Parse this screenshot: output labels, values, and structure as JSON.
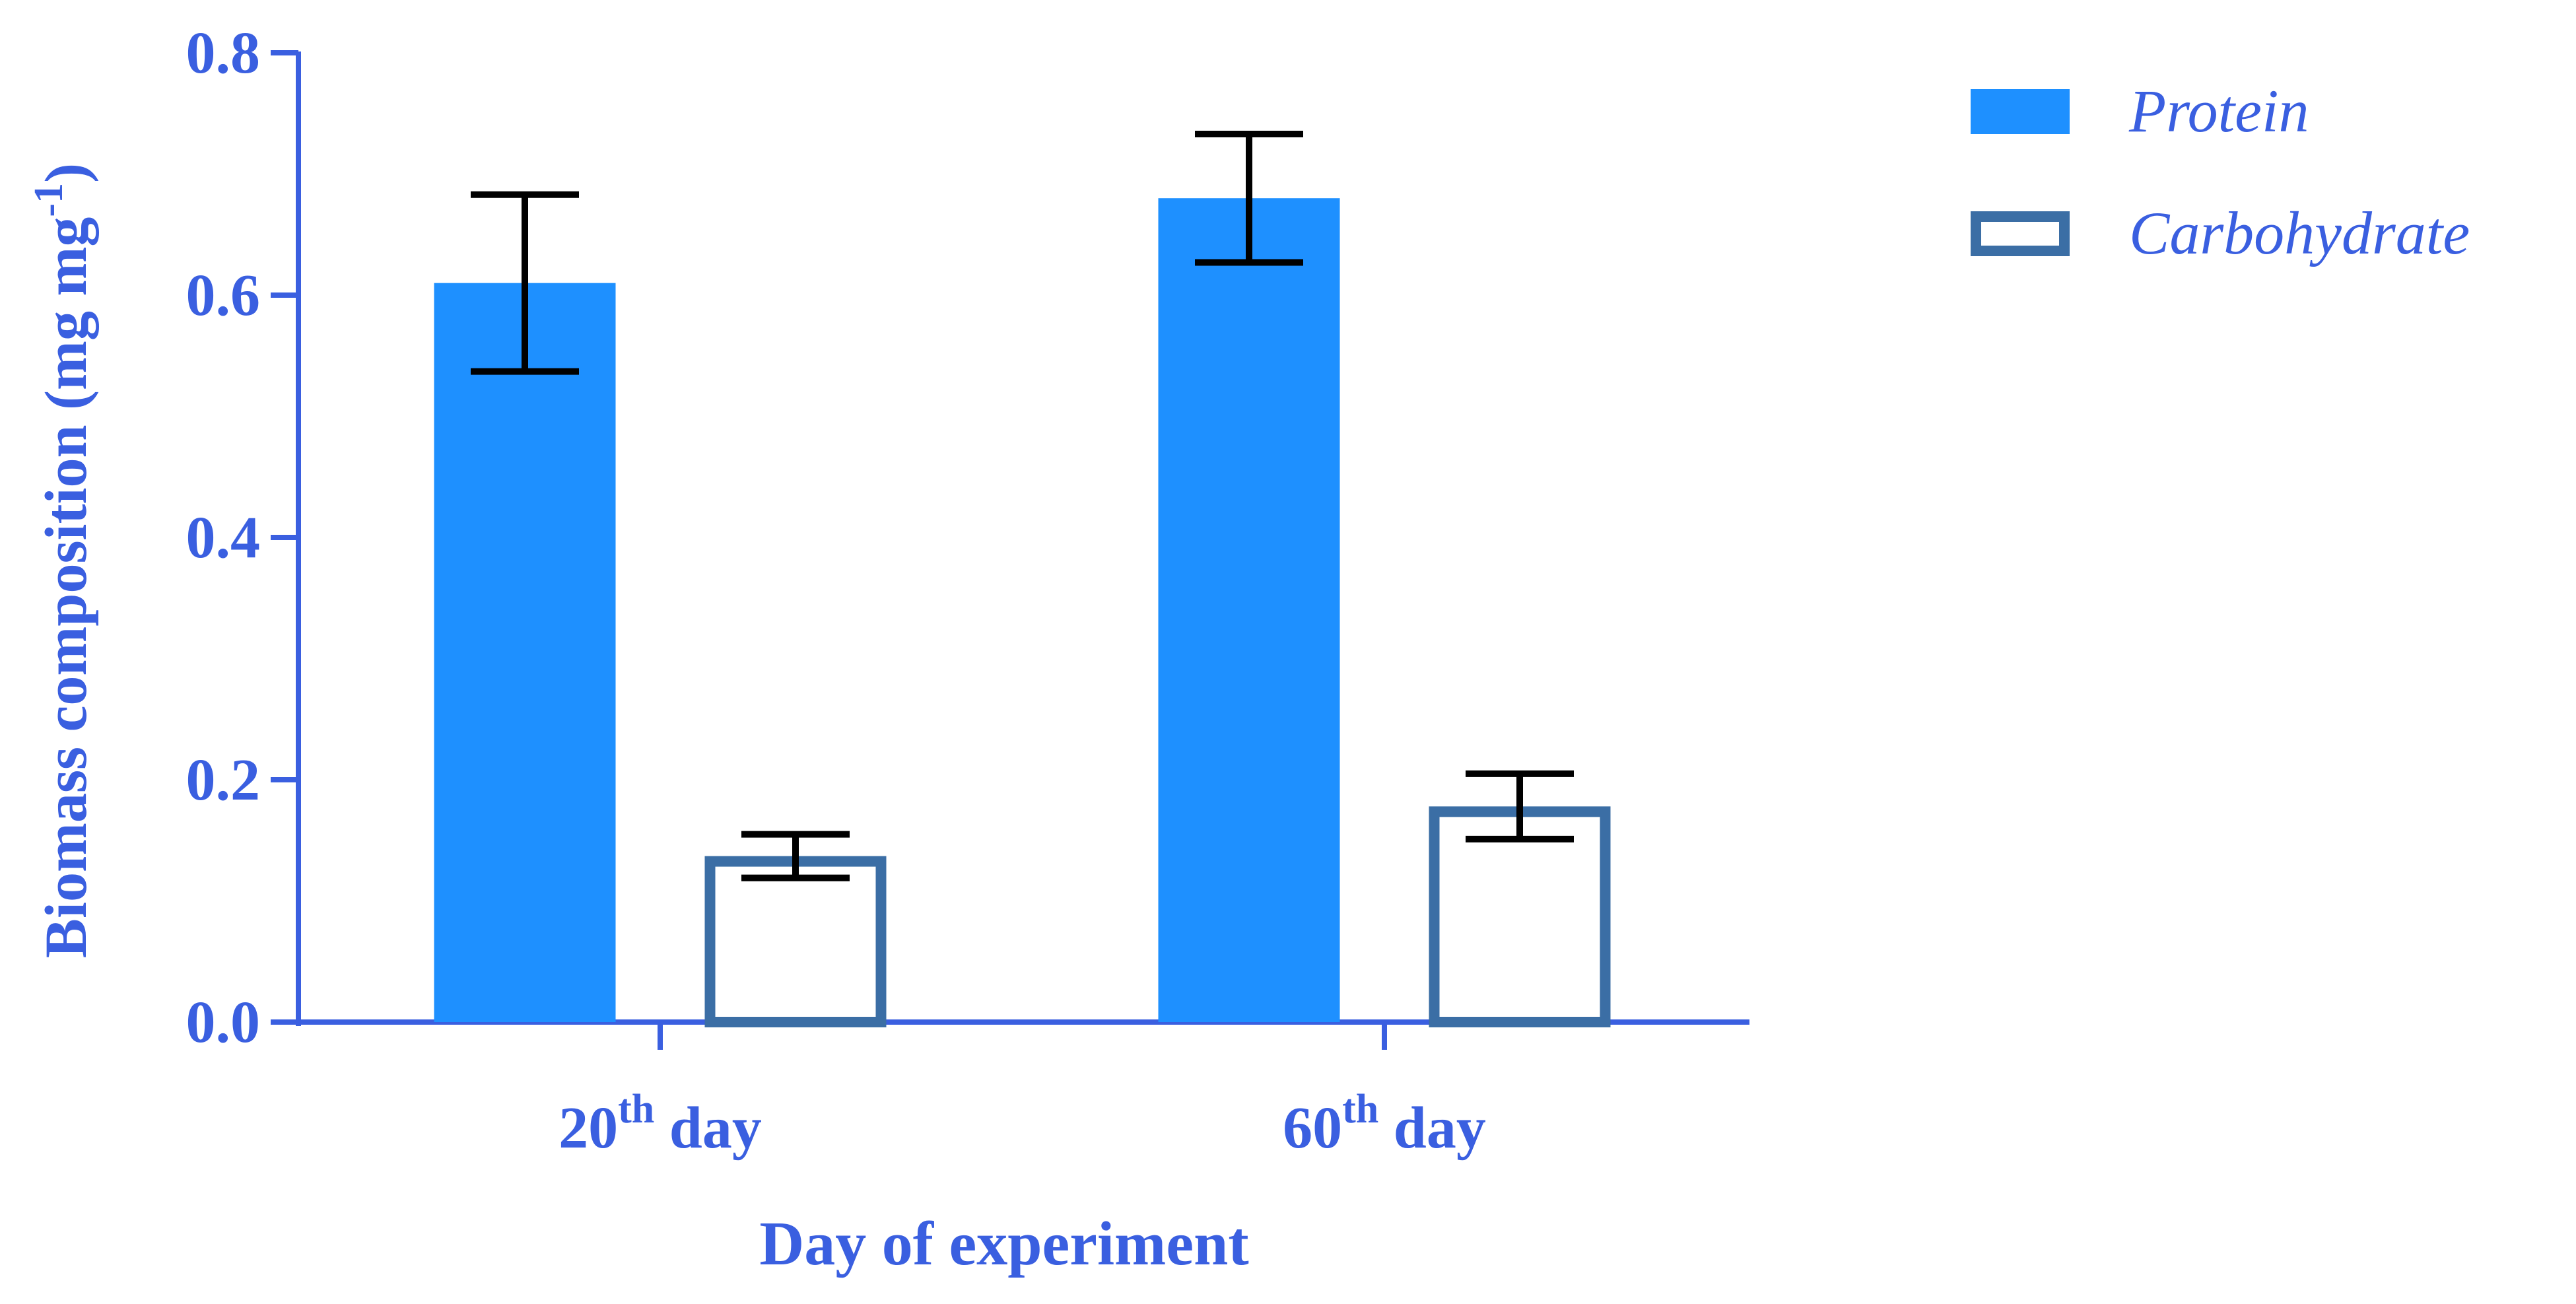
{
  "chart_data": {
    "type": "bar",
    "title": "",
    "xlabel": "Day of experiment",
    "ylabel": "Biomass composition (mg mg",
    "ylabel_superscript": "-1",
    "ylabel_close": ")",
    "ylim": [
      0,
      0.8
    ],
    "yticks": [
      0.0,
      0.2,
      0.4,
      0.6,
      0.8
    ],
    "ytick_labels": [
      "0.0",
      "0.2",
      "0.4",
      "0.6",
      "0.8"
    ],
    "categories": [
      {
        "base": "20",
        "sup": "th",
        "rest": "day"
      },
      {
        "base": "60",
        "sup": "th",
        "rest": "day"
      }
    ],
    "series": [
      {
        "name": "Protein",
        "style": "filled",
        "values": [
          0.61,
          0.68
        ],
        "errors": [
          0.073,
          0.053
        ]
      },
      {
        "name": "Carbohydrate",
        "style": "outline",
        "values": [
          0.137,
          0.178
        ],
        "errors": [
          0.018,
          0.027
        ]
      }
    ],
    "legend_position": "top-right",
    "grid": false
  },
  "colors": {
    "axis": "#3a5fe0",
    "text": "#3a5fe0",
    "protein_fill": "#1e90ff",
    "carb_stroke": "#3b6ea5",
    "carb_fill": "#ffffff",
    "errorbar": "#000000"
  }
}
